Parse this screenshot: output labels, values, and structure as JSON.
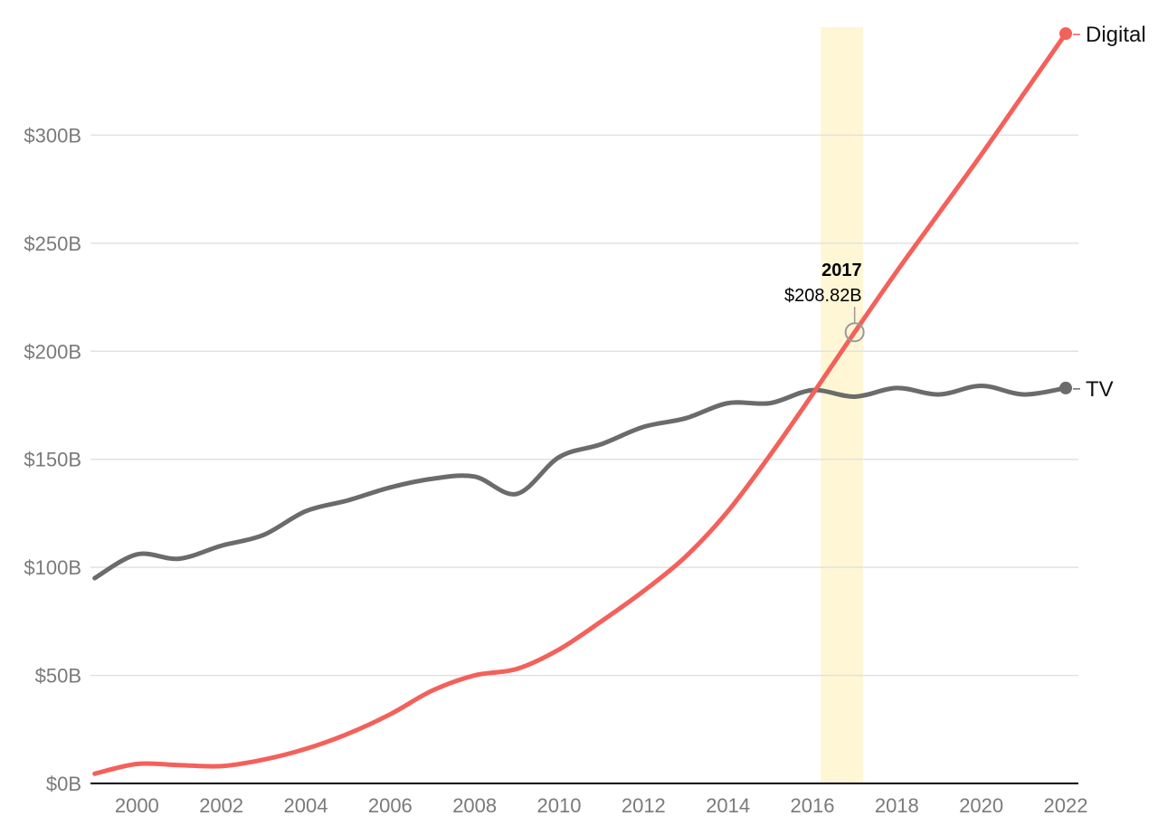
{
  "chart_data": {
    "type": "line",
    "title": "",
    "xlabel": "",
    "ylabel": "",
    "xlim": [
      1998.9,
      2022.3
    ],
    "ylim": [
      0,
      350
    ],
    "x_ticks": [
      2000,
      2002,
      2004,
      2006,
      2008,
      2010,
      2012,
      2014,
      2016,
      2018,
      2020,
      2022
    ],
    "x_tick_labels": [
      "2000",
      "2002",
      "2004",
      "2006",
      "2008",
      "2010",
      "2012",
      "2014",
      "2016",
      "2018",
      "2020",
      "2022"
    ],
    "y_ticks": [
      0,
      50,
      100,
      150,
      200,
      250,
      300
    ],
    "y_tick_labels": [
      "$0B",
      "$50B",
      "$100B",
      "$150B",
      "$200B",
      "$250B",
      "$300B"
    ],
    "grid": true,
    "highlight_band": {
      "x0": 2016.2,
      "x1": 2017.2,
      "color": "#fff6d5"
    },
    "annotation": {
      "x": 2017,
      "y": 208.82,
      "year_label": "2017",
      "value_label": "$208.82B"
    },
    "series": [
      {
        "name": "Digital",
        "color": "#f4605a",
        "x": [
          1999,
          2000,
          2001,
          2002,
          2003,
          2004,
          2005,
          2006,
          2007,
          2008,
          2009,
          2010,
          2011,
          2012,
          2013,
          2014,
          2015,
          2016,
          2017,
          2018,
          2019,
          2020,
          2021,
          2022
        ],
        "values": [
          4.5,
          9,
          8.5,
          8,
          11,
          16,
          23,
          32,
          43,
          50,
          53,
          62,
          75,
          89,
          105,
          126,
          152,
          180,
          208.82,
          237,
          264,
          291,
          319,
          347
        ]
      },
      {
        "name": "TV",
        "color": "#6b6b6b",
        "x": [
          1999,
          2000,
          2001,
          2002,
          2003,
          2004,
          2005,
          2006,
          2007,
          2008,
          2009,
          2010,
          2011,
          2012,
          2013,
          2014,
          2015,
          2016,
          2017,
          2018,
          2019,
          2020,
          2021,
          2022
        ],
        "values": [
          95,
          106,
          104,
          110,
          115,
          126,
          131,
          137,
          141,
          142,
          134,
          151,
          157,
          165,
          169,
          176,
          176,
          182,
          179,
          183,
          180,
          184,
          180,
          183
        ]
      }
    ]
  }
}
